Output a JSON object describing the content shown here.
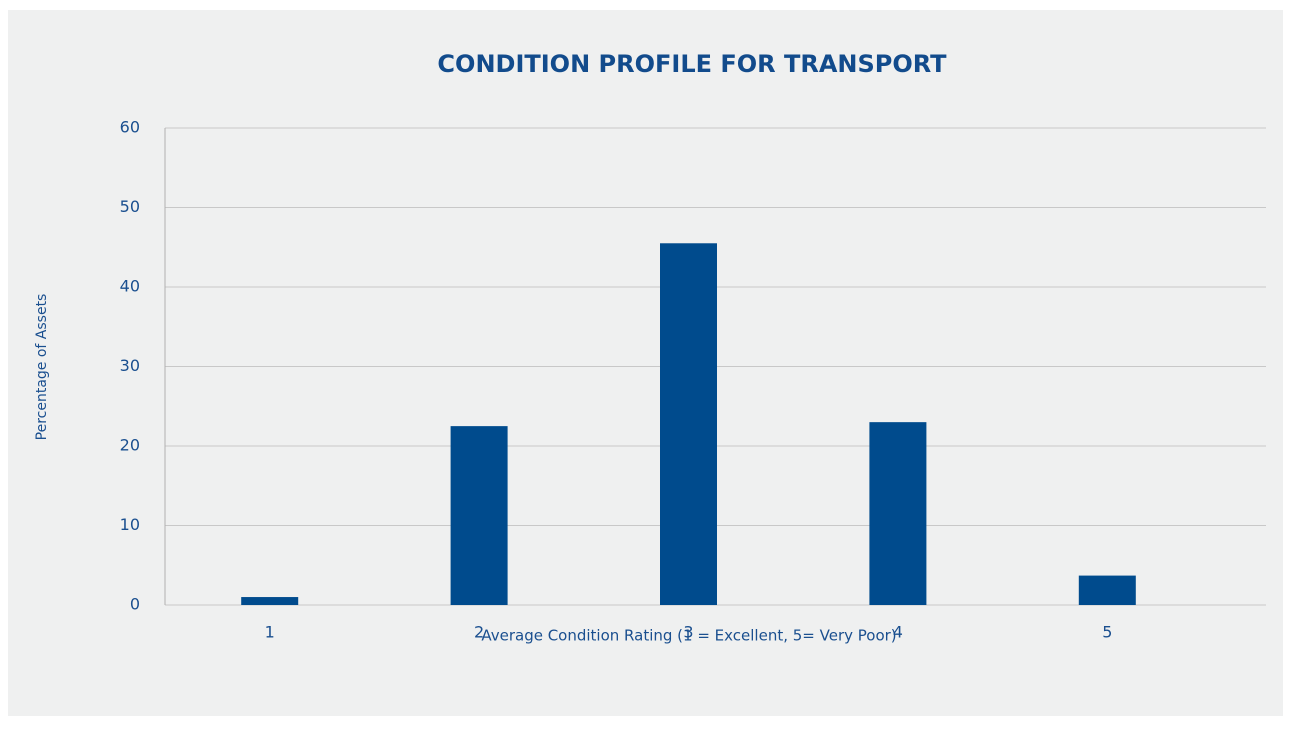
{
  "chart_data": {
    "type": "bar",
    "title": "CONDITION PROFILE FOR TRANSPORT",
    "x_label": "Average Condition Rating (1 = Excellent, 5= Very Poor)",
    "y_label": "Percentage of Assets",
    "categories": [
      "1",
      "2",
      "3",
      "4",
      "5"
    ],
    "values": [
      1,
      22.5,
      45.5,
      23,
      3.7
    ],
    "color": "#004b8d",
    "ylim": [
      0,
      60
    ],
    "yticks": [
      0,
      10,
      20,
      30,
      40,
      50,
      60
    ],
    "grid": true
  }
}
